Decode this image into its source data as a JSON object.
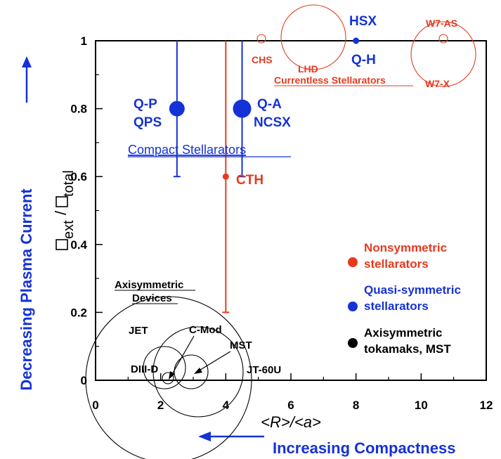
{
  "chart_data": {
    "type": "scatter",
    "xlabel": "<R>/<a>",
    "ylabel_main": "ext",
    "ylabel_sub": "total",
    "ylabel_slash": "/",
    "xlim": [
      0,
      12
    ],
    "ylim": [
      0,
      1
    ],
    "x_ticks": [
      0,
      2,
      4,
      6,
      8,
      10,
      12
    ],
    "x_tick_labels": [
      "0",
      "2",
      "4",
      "6",
      "8",
      "10",
      "12"
    ],
    "y_ticks": [
      0,
      0.2,
      0.4,
      0.6,
      0.8,
      1
    ],
    "y_tick_labels": [
      "0",
      "0.2",
      "0.4",
      "0.6",
      "0.8",
      "1"
    ],
    "grid": false,
    "left_arrow_label": "Decreasing Plasma Current",
    "bottom_arrow_label": "Increasing Compactness",
    "colors": {
      "nonsymmetric": "#e53a1e",
      "quasi": "#1532d6",
      "axisym": "#000000"
    },
    "series": [
      {
        "name": "Nonsymmetric stellarators",
        "color": "#e53a1e",
        "points": [
          {
            "label": "CTH",
            "x": 4.0,
            "y": 0.6,
            "err_low": 0.2,
            "err_high": 1.0,
            "marker": "dot-small"
          },
          {
            "label": "CHS",
            "x": 5.0,
            "y": 1.0,
            "marker": "circle-small"
          },
          {
            "label": "LHD",
            "x": 6.3,
            "y": 1.0,
            "marker": "circle-large"
          },
          {
            "label": "W7-AS",
            "x": 10.5,
            "y": 1.0,
            "marker": "circle-small"
          },
          {
            "label": "W7-X",
            "x": 10.5,
            "y": 0.93,
            "marker": "circle-large"
          }
        ]
      },
      {
        "name": "Quasi-symmetric stellarators",
        "color": "#1532d6",
        "points": [
          {
            "label": "Q-P QPS",
            "x": 2.5,
            "y": 0.8,
            "err_low": 0.6,
            "err_high": 1.0,
            "marker": "dot-large"
          },
          {
            "label": "Q-A NCSX",
            "x": 4.5,
            "y": 0.8,
            "err_low": 0.6,
            "err_high": 1.0,
            "marker": "dot-xlarge"
          },
          {
            "label": "HSX Q-H",
            "x": 8.0,
            "y": 1.0,
            "marker": "dot-small"
          }
        ]
      },
      {
        "name": "Axisymmetric tokamaks, MST",
        "color": "#000000",
        "points": [
          {
            "label": "JET",
            "x": 2.5,
            "y": 0.0,
            "marker": "circle-xlarge"
          },
          {
            "label": "DIII-D",
            "x": 2.3,
            "y": 0.0,
            "marker": "circle-medium"
          },
          {
            "label": "C-Mod",
            "x": 2.2,
            "y": 0.0,
            "marker": "circle-tiny"
          },
          {
            "label": "MST",
            "x": 3.0,
            "y": 0.0,
            "marker": "circle-medium"
          },
          {
            "label": "JT-60U",
            "x": 3.0,
            "y": 0.0,
            "marker": "circle-large"
          }
        ]
      }
    ],
    "annotations": {
      "compact": "Compact Stellarators",
      "currentless": "Currentless Stellarators",
      "axisym_line1": "Axisymmetric",
      "axisym_line2": "Devices",
      "qp": "Q-P",
      "qps": "QPS",
      "qa": "Q-A",
      "ncsx": "NCSX",
      "hsx": "HSX",
      "qh": "Q-H",
      "cth": "CTH",
      "chs": "CHS",
      "lhd": "LHD",
      "w7as": "W7-AS",
      "w7x": "W7-X",
      "jet": "JET",
      "cmod": "C-Mod",
      "mst": "MST",
      "diiid": "DIII-D",
      "jt60u": "JT-60U"
    },
    "legend": [
      {
        "line1": "Nonsymmetric",
        "line2": "stellarators",
        "color": "#e53a1e"
      },
      {
        "line1": "Quasi-symmetric",
        "line2": "stellarators",
        "color": "#1532d6"
      },
      {
        "line1": "Axisymmetric",
        "line2": "tokamaks, MST",
        "color": "#000000"
      }
    ]
  }
}
